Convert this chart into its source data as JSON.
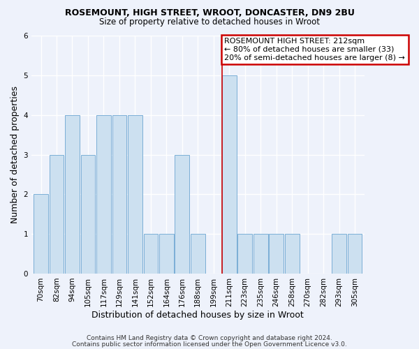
{
  "title": "ROSEMOUNT, HIGH STREET, WROOT, DONCASTER, DN9 2BU",
  "subtitle": "Size of property relative to detached houses in Wroot",
  "xlabel": "Distribution of detached houses by size in Wroot",
  "ylabel": "Number of detached properties",
  "footer_line1": "Contains HM Land Registry data © Crown copyright and database right 2024.",
  "footer_line2": "Contains public sector information licensed under the Open Government Licence v3.0.",
  "bin_labels": [
    "70sqm",
    "82sqm",
    "94sqm",
    "105sqm",
    "117sqm",
    "129sqm",
    "141sqm",
    "152sqm",
    "164sqm",
    "176sqm",
    "188sqm",
    "199sqm",
    "211sqm",
    "223sqm",
    "235sqm",
    "246sqm",
    "258sqm",
    "270sqm",
    "282sqm",
    "293sqm",
    "305sqm"
  ],
  "bar_heights": [
    2,
    3,
    4,
    3,
    4,
    4,
    4,
    1,
    1,
    3,
    1,
    0,
    5,
    1,
    1,
    1,
    1,
    0,
    0,
    1,
    1
  ],
  "highlight_index": 12,
  "bar_color": "#cce0f0",
  "bar_edge_color": "#7aaed6",
  "ylim": [
    0,
    6
  ],
  "yticks": [
    0,
    1,
    2,
    3,
    4,
    5,
    6
  ],
  "annotation_title": "ROSEMOUNT HIGH STREET: 212sqm",
  "annotation_line1": "← 80% of detached houses are smaller (33)",
  "annotation_line2": "20% of semi-detached houses are larger (8) →",
  "annotation_box_color": "#ffffff",
  "annotation_box_edge_color": "#cc0000",
  "vline_color": "#cc0000",
  "background_color": "#eef2fb",
  "plot_bg_color": "#eef2fb",
  "grid_color": "#ffffff",
  "title_fontsize": 9,
  "subtitle_fontsize": 8.5,
  "tick_fontsize": 7.5,
  "ylabel_fontsize": 9,
  "xlabel_fontsize": 9,
  "annotation_fontsize": 8,
  "footer_fontsize": 6.5
}
